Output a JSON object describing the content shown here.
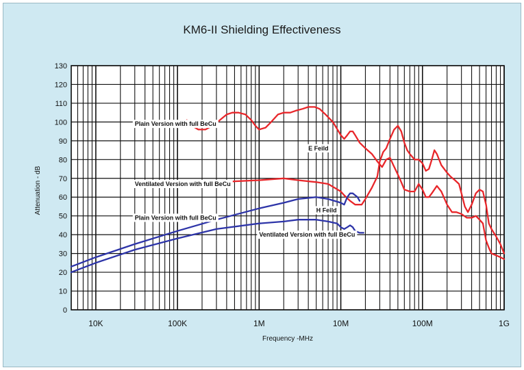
{
  "chart_data": {
    "type": "line",
    "title": "KM6-II Shielding Effectiveness",
    "xlabel": "Frequency -MHz",
    "ylabel": "Attenuation - dB",
    "x_scale": "log",
    "xlim": [
      "5K",
      "1G"
    ],
    "ylim": [
      0,
      130
    ],
    "x_tick_labels": [
      "10K",
      "100K",
      "1M",
      "10M",
      "100M",
      "1G"
    ],
    "y_ticks": [
      0,
      10,
      20,
      30,
      40,
      50,
      60,
      70,
      80,
      90,
      100,
      110,
      120,
      130
    ],
    "grid": true,
    "series": [
      {
        "name": "Plain Version with full BeCu",
        "group": "E Feild",
        "color": "#e8262a",
        "points": [
          [
            "130K",
            101
          ],
          [
            "150K",
            98
          ],
          [
            "180K",
            96
          ],
          [
            "220K",
            96
          ],
          [
            "270K",
            98
          ],
          [
            "330K",
            101
          ],
          [
            "400K",
            104
          ],
          [
            "470K",
            105
          ],
          [
            "560K",
            105
          ],
          [
            "680K",
            104
          ],
          [
            "800K",
            101
          ],
          [
            "900K",
            98
          ],
          [
            "1M",
            96
          ],
          [
            "1.2M",
            97
          ],
          [
            "1.4M",
            100
          ],
          [
            "1.7M",
            104
          ],
          [
            "2M",
            105
          ],
          [
            "2.4M",
            105
          ],
          [
            "2.8M",
            106
          ],
          [
            "3.4M",
            107
          ],
          [
            "4M",
            108
          ],
          [
            "4.8M",
            108
          ],
          [
            "5.5M",
            107
          ],
          [
            "6.5M",
            104
          ],
          [
            "8M",
            100
          ],
          [
            "10M",
            93
          ],
          [
            "11M",
            91
          ],
          [
            "12M",
            93
          ],
          [
            "13M",
            95
          ],
          [
            "14M",
            95
          ],
          [
            "15M",
            93
          ],
          [
            "17M",
            89
          ],
          [
            "20M",
            86
          ],
          [
            "24M",
            83
          ],
          [
            "28M",
            79
          ],
          [
            "32M",
            76
          ],
          [
            "36M",
            80
          ],
          [
            "40M",
            81
          ],
          [
            "44M",
            77
          ],
          [
            "50M",
            72
          ],
          [
            "55M",
            68
          ],
          [
            "60M",
            64
          ],
          [
            "70M",
            63
          ],
          [
            "80M",
            63
          ],
          [
            "90M",
            67
          ],
          [
            "100M",
            64
          ],
          [
            "110M",
            60
          ],
          [
            "120M",
            60
          ],
          [
            "130M",
            62
          ],
          [
            "150M",
            66
          ],
          [
            "170M",
            63
          ],
          [
            "200M",
            56
          ],
          [
            "230M",
            52
          ],
          [
            "260M",
            52
          ],
          [
            "300M",
            51
          ],
          [
            "350M",
            49
          ],
          [
            "400M",
            49
          ],
          [
            "450M",
            50
          ],
          [
            "500M",
            48
          ],
          [
            "550M",
            46
          ],
          [
            "600M",
            37
          ],
          [
            "650M",
            33
          ],
          [
            "700M",
            30
          ],
          [
            "800M",
            29
          ],
          [
            "900M",
            28
          ],
          [
            "1G",
            27
          ]
        ]
      },
      {
        "name": "Ventilated Version with full BeCu",
        "group": "E Feild",
        "color": "#e8262a",
        "points": [
          [
            "100K",
            68
          ],
          [
            "300K",
            68
          ],
          [
            "1M",
            69
          ],
          [
            "2M",
            70
          ],
          [
            "3M",
            69
          ],
          [
            "5M",
            68
          ],
          [
            "7M",
            67
          ],
          [
            "10M",
            63
          ],
          [
            "11M",
            61
          ],
          [
            "13M",
            58
          ],
          [
            "15M",
            56
          ],
          [
            "18M",
            56
          ],
          [
            "20M",
            59
          ],
          [
            "24M",
            65
          ],
          [
            "28M",
            71
          ],
          [
            "30M",
            79
          ],
          [
            "33M",
            84
          ],
          [
            "36M",
            86
          ],
          [
            "40M",
            91
          ],
          [
            "45M",
            96
          ],
          [
            "50M",
            98
          ],
          [
            "55M",
            95
          ],
          [
            "60M",
            89
          ],
          [
            "65M",
            85
          ],
          [
            "70M",
            83
          ],
          [
            "80M",
            80
          ],
          [
            "90M",
            80
          ],
          [
            "100M",
            78
          ],
          [
            "110M",
            74
          ],
          [
            "120M",
            75
          ],
          [
            "130M",
            80
          ],
          [
            "140M",
            85
          ],
          [
            "150M",
            83
          ],
          [
            "170M",
            77
          ],
          [
            "200M",
            73
          ],
          [
            "220M",
            71
          ],
          [
            "250M",
            69
          ],
          [
            "280M",
            67
          ],
          [
            "300M",
            62
          ],
          [
            "330M",
            55
          ],
          [
            "360M",
            52
          ],
          [
            "400M",
            56
          ],
          [
            "450M",
            62
          ],
          [
            "500M",
            64
          ],
          [
            "550M",
            63
          ],
          [
            "600M",
            56
          ],
          [
            "650M",
            46
          ],
          [
            "700M",
            43
          ],
          [
            "800M",
            39
          ],
          [
            "900M",
            35
          ],
          [
            "1G",
            30
          ]
        ]
      },
      {
        "name": "Plain Version with full BeCu",
        "group": "H Feild",
        "color": "#2d34a8",
        "points": [
          [
            "5K",
            23
          ],
          [
            "10K",
            28
          ],
          [
            "30K",
            35
          ],
          [
            "100K",
            42
          ],
          [
            "300K",
            48
          ],
          [
            "1M",
            54
          ],
          [
            "2M",
            57
          ],
          [
            "3M",
            59
          ],
          [
            "5M",
            60
          ],
          [
            "7M",
            59
          ],
          [
            "10M",
            57
          ],
          [
            "11M",
            56
          ],
          [
            "12M",
            60
          ],
          [
            "13M",
            62
          ],
          [
            "14M",
            62
          ],
          [
            "15M",
            61
          ],
          [
            "16M",
            60
          ],
          [
            "17M",
            58
          ]
        ]
      },
      {
        "name": "Ventilated Version with full BeCu",
        "group": "H Feild",
        "color": "#2d34a8",
        "points": [
          [
            "5K",
            20
          ],
          [
            "10K",
            25
          ],
          [
            "30K",
            32
          ],
          [
            "100K",
            38
          ],
          [
            "300K",
            43
          ],
          [
            "1M",
            46
          ],
          [
            "2M",
            47
          ],
          [
            "3M",
            48
          ],
          [
            "5M",
            48
          ],
          [
            "7M",
            47
          ],
          [
            "9M",
            46
          ],
          [
            "10M",
            44
          ],
          [
            "11M",
            43
          ],
          [
            "12M",
            44
          ],
          [
            "13M",
            45
          ],
          [
            "14M",
            44
          ],
          [
            "15M",
            42
          ],
          [
            "17M",
            41
          ],
          [
            "19M",
            41
          ]
        ]
      }
    ],
    "annotations": [
      {
        "text": "Plain Version with full BeCu",
        "x": "30K",
        "y": 99
      },
      {
        "text": "E Feild",
        "x": "4M",
        "y": 86
      },
      {
        "text": "Ventilated Version with full BeCu",
        "x": "30K",
        "y": 67
      },
      {
        "text": "H Feild",
        "x": "5M",
        "y": 53
      },
      {
        "text": "Plain Version with full BeCu",
        "x": "30K",
        "y": 49
      },
      {
        "text": "Ventilated Version with full BeCu",
        "x": "1M",
        "y": 40
      }
    ]
  }
}
